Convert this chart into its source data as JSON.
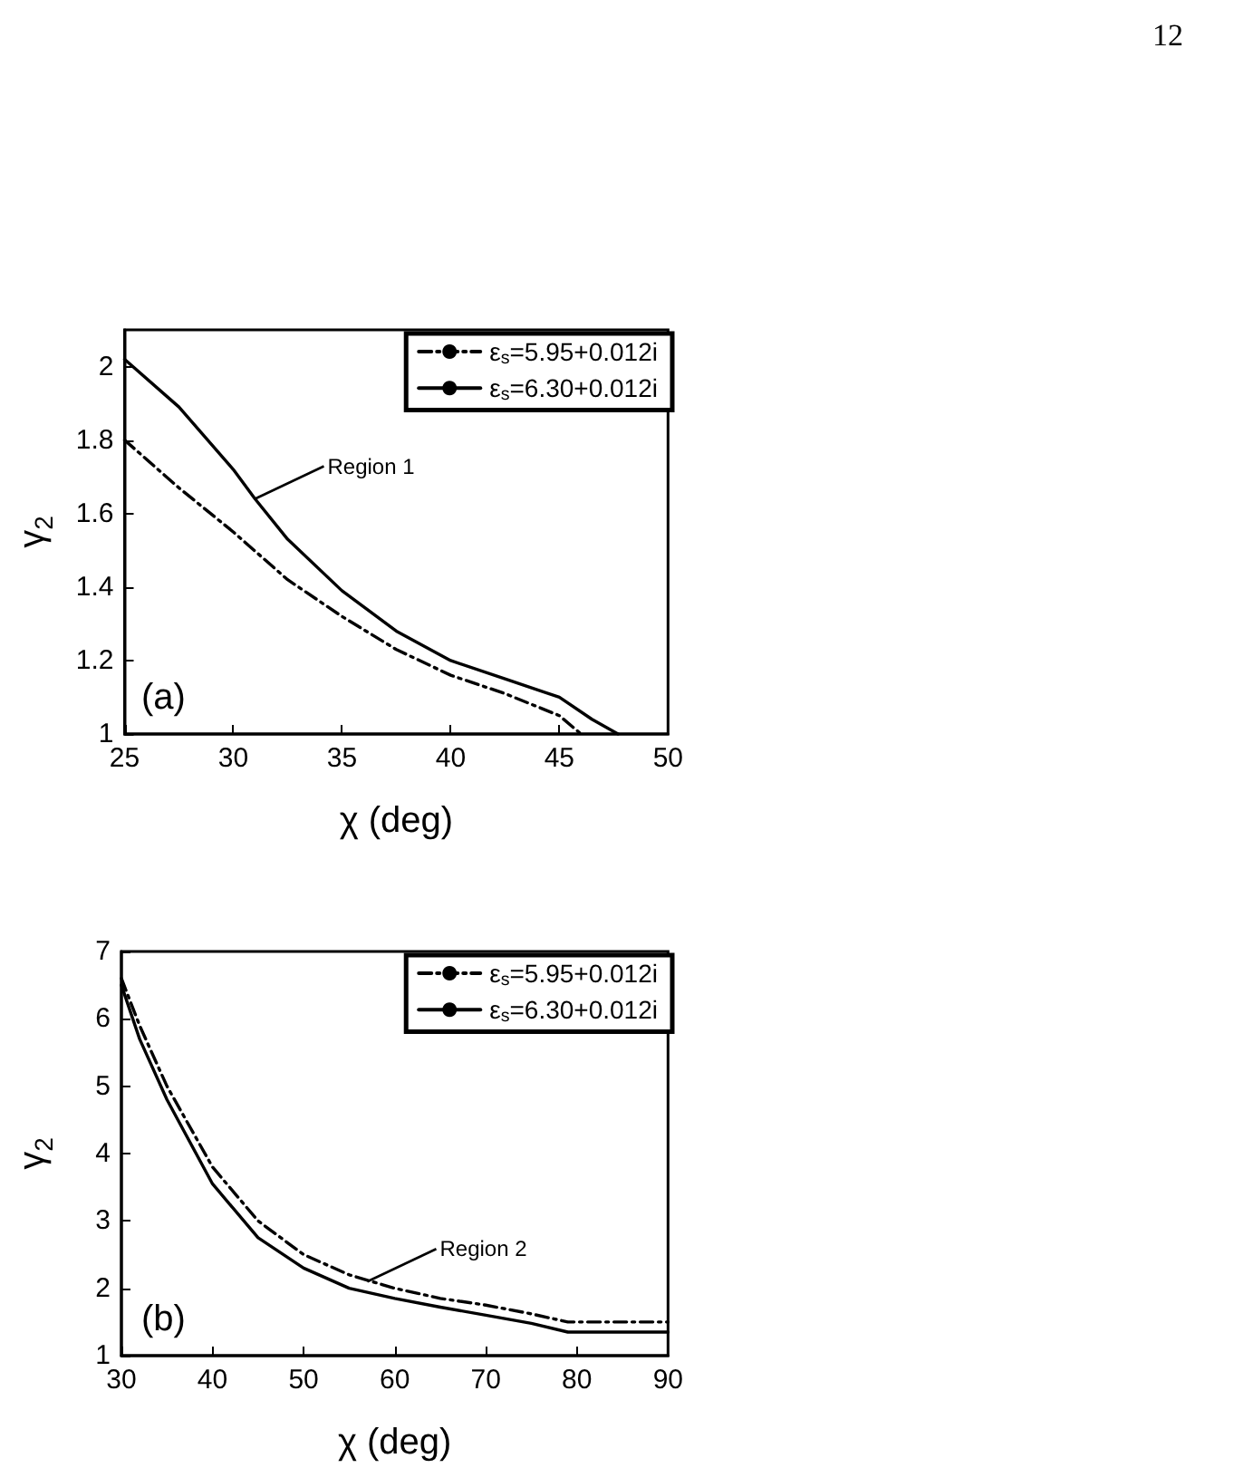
{
  "chart_data": [
    {
      "type": "line",
      "xlabel": "χ (deg)",
      "ylabel": "γ$_{2}$",
      "xlim": [
        25,
        50
      ],
      "ylim": [
        1,
        2.1
      ],
      "xticks": [
        25,
        30,
        35,
        40,
        45,
        50
      ],
      "yticks": [
        1,
        1.2,
        1.4,
        1.6,
        1.8,
        2
      ],
      "grid": false,
      "legend": "top right",
      "marker": "none",
      "annotations": [
        "(a)",
        "12",
        {
          "text": "Region 1",
          "x": 31,
          "y": 1.64
        }
      ],
      "series": [
        {
          "name": "ε$_{s}$=5.95+0.012i",
          "color": "#000000",
          "line_style": "dashed",
          "x": [
            25,
            27.5,
            30,
            32.5,
            35,
            37.5,
            40,
            42.5,
            45,
            46
          ],
          "values": [
            1.8,
            1.67,
            1.55,
            1.42,
            1.32,
            1.23,
            1.16,
            1.11,
            1.05,
            1.0
          ]
        },
        {
          "name": "ε$_{s}$=6.30+0.012i",
          "color": "#000000",
          "line_style": "solid",
          "x": [
            25,
            27.5,
            30,
            31,
            32.5,
            35,
            37.5,
            40,
            42.5,
            45,
            46.5,
            47.7
          ],
          "values": [
            2.02,
            1.89,
            1.72,
            1.64,
            1.53,
            1.39,
            1.28,
            1.2,
            1.15,
            1.1,
            1.04,
            1.0
          ]
        }
      ]
    },
    {
      "type": "line",
      "xlabel": "χ (deg)",
      "ylabel": "γ$_{2}$",
      "xlim": [
        30,
        90
      ],
      "ylim": [
        1,
        7
      ],
      "xticks": [
        30,
        40,
        50,
        60,
        70,
        80,
        90
      ],
      "yticks": [
        1,
        2,
        3,
        4,
        5,
        6,
        7
      ],
      "grid": false,
      "legend": "top right",
      "marker": "none",
      "annotations": [
        "(b)",
        {
          "text": "Region 2",
          "x": 57,
          "y": 2.1
        }
      ],
      "series": [
        {
          "name": "ε$_{s}$=5.95+0.012i",
          "color": "#000000",
          "line_style": "dashed",
          "x": [
            30,
            32,
            35,
            40,
            45,
            50,
            55,
            60,
            65,
            70,
            75,
            79,
            90
          ],
          "values": [
            6.6,
            5.9,
            5.0,
            3.8,
            3.0,
            2.5,
            2.2,
            2.0,
            1.85,
            1.75,
            1.62,
            1.5,
            1.5
          ]
        },
        {
          "name": "ε$_{s}$=6.30+0.012i",
          "color": "#000000",
          "line_style": "solid",
          "x": [
            30,
            32,
            35,
            40,
            45,
            50,
            55,
            60,
            65,
            70,
            75,
            79,
            90
          ],
          "values": [
            6.5,
            5.7,
            4.8,
            3.55,
            2.75,
            2.3,
            2.0,
            1.85,
            1.72,
            1.6,
            1.48,
            1.35,
            1.35
          ]
        }
      ]
    }
  ]
}
